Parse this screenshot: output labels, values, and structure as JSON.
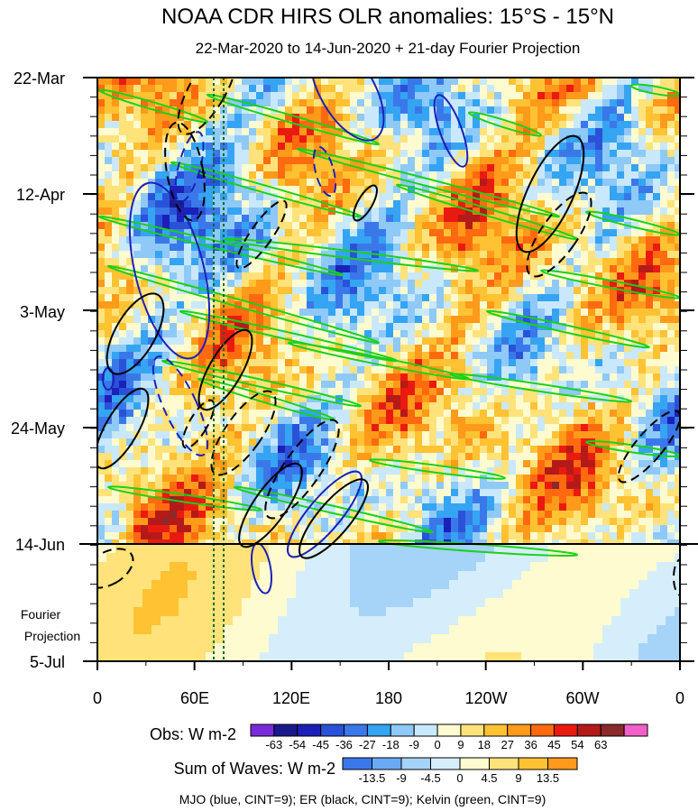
{
  "chart_data": {
    "type": "heatmap",
    "title": "NOAA CDR HIRS OLR anomalies: 15°S - 15°N",
    "subtitle": "22-Mar-2020 to 14-Jun-2020 + 21-day Fourier Projection",
    "y_ticks": [
      "22-Mar",
      "12-Apr",
      "3-May",
      "24-May",
      "14-Jun",
      "5-Jul"
    ],
    "y_side_label": [
      "Fourier",
      "Projection"
    ],
    "x_ticks": [
      "0",
      "60E",
      "120E",
      "180",
      "120W",
      "60W",
      "0"
    ],
    "x_range_deg": [
      0,
      360
    ],
    "obs_colorbar": {
      "label": "Obs: W m-2",
      "ticks": [
        "-63",
        "-54",
        "-45",
        "-36",
        "-27",
        "-18",
        "-9",
        "0",
        "9",
        "18",
        "27",
        "36",
        "45",
        "54",
        "63"
      ],
      "colors": [
        "#7a2bd9",
        "#1a1a8c",
        "#1c20b8",
        "#2a52d8",
        "#3a78ea",
        "#35a4f2",
        "#8ec9f7",
        "#c9e8fb",
        "#fffbd0",
        "#ffe27a",
        "#ffc233",
        "#ff9a1a",
        "#ff6a10",
        "#ea1a10",
        "#b51a18",
        "#8a2a2a",
        "#f060c8"
      ]
    },
    "waves_colorbar": {
      "label": "Sum of Waves: W m-2",
      "ticks": [
        "-13.5",
        "-9",
        "-4.5",
        "0",
        "4.5",
        "9",
        "13.5"
      ],
      "colors": [
        "#3a78ea",
        "#6aaaf5",
        "#a6d3f8",
        "#d6eefb",
        "#fffbd0",
        "#ffe27a",
        "#ffc233",
        "#ff9a1a"
      ]
    },
    "footnote": "MJO (blue, CINT=9); ER (black, CINT=9); Kelvin (green, CINT=9)",
    "series": [
      {
        "name": "MJO",
        "color": "#1c20b8"
      },
      {
        "name": "ER",
        "color": "#000000"
      },
      {
        "name": "Kelvin",
        "color": "#19d219"
      }
    ]
  }
}
